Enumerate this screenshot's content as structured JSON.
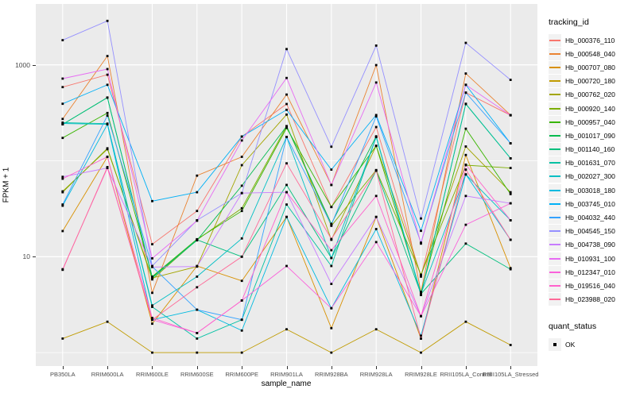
{
  "figure": {
    "y_axis_title": "FPKM + 1",
    "x_axis_title": "sample_name",
    "legend_tracking_title": "tracking_id",
    "legend_quant_title": "quant_status",
    "quant_item_label": "OK"
  },
  "colors": {
    "panel_background": "#EBEBEB",
    "gridline": "#FFFFFF",
    "tick_text": "#4D4D4D",
    "legend_key_background": "#F2F2F2",
    "point_color": "#000000"
  },
  "chart_data": {
    "type": "line",
    "title": "",
    "xlabel": "sample_name",
    "ylabel": "FPKM + 1",
    "y_scale": "log10",
    "ylim": [
      0.9,
      4100
    ],
    "y_tick_values": [
      1000,
      10
    ],
    "y_tick_labels": [
      "1000",
      "10"
    ],
    "y_major_gridlines": [
      1000,
      10
    ],
    "y_minor_gridlines": [
      100,
      1
    ],
    "grid": true,
    "legend_position": "right",
    "point_marker": {
      "shape": "square",
      "color": "#000000",
      "status_label": "OK"
    },
    "categories": [
      "PB350LA",
      "RRIM600LA",
      "RRIM600LE",
      "RRIM600SE",
      "RRIM600PE",
      "RRIM901LA",
      "RRIM928BA",
      "RRIM928LA",
      "RRIM928LE",
      "RRII105LA_Control",
      "RRII105LA_Stressed"
    ],
    "series": [
      {
        "name": "Hb_000376_110",
        "color": "#F8766D",
        "values": [
          586,
          790,
          13.5,
          30,
          179,
          391,
          33,
          225,
          6.2,
          513,
          298
        ]
      },
      {
        "name": "Hb_000548_040",
        "color": "#EA8331",
        "values": [
          273,
          1235,
          4.2,
          70,
          110,
          490,
          56,
          995,
          4.3,
          813,
          300
        ]
      },
      {
        "name": "Hb_000707_080",
        "color": "#D89000",
        "values": [
          18.5,
          110,
          2.0,
          8.0,
          5.6,
          26,
          1.8,
          26,
          1.4,
          115,
          7.6
        ]
      },
      {
        "name": "Hb_000720_180",
        "color": "#C09B00",
        "values": [
          1.4,
          2.1,
          1.0,
          1.0,
          1.0,
          1.75,
          1.0,
          1.75,
          1.0,
          2.1,
          1.2
        ]
      },
      {
        "name": "Hb_000762_020",
        "color": "#A3A500",
        "values": [
          48,
          132,
          6.0,
          7.9,
          90,
          303,
          15,
          143,
          6.4,
          141,
          47
        ]
      },
      {
        "name": "Hb_000920_140",
        "color": "#7CAE00",
        "values": [
          47,
          135,
          5.8,
          15,
          32,
          230,
          21,
          80,
          6.5,
          90,
          84
        ]
      },
      {
        "name": "Hb_000957_040",
        "color": "#39B600",
        "values": [
          173,
          315,
          6.2,
          15.2,
          30,
          220,
          33,
          143,
          4.2,
          216,
          45
        ]
      },
      {
        "name": "Hb_001017_090",
        "color": "#00BB4E",
        "values": [
          240,
          457,
          6.1,
          14.8,
          55,
          229,
          22,
          180,
          4.0,
          390,
          106
        ]
      },
      {
        "name": "Hb_001140_160",
        "color": "#00BF7D",
        "values": [
          240,
          455,
          6.0,
          15,
          10,
          56,
          9.7,
          79,
          4.1,
          13.7,
          7.4
        ]
      },
      {
        "name": "Hb_001631_070",
        "color": "#00C1A3",
        "values": [
          250,
          244,
          3.0,
          1.4,
          2.2,
          35,
          8.0,
          177,
          4.0,
          393,
          106
        ]
      },
      {
        "name": "Hb_002027_300",
        "color": "#00BFC4",
        "values": [
          245,
          240,
          3.1,
          6.2,
          15.5,
          177,
          9.7,
          177,
          4.1,
          72,
          24
        ]
      },
      {
        "name": "Hb_003018_180",
        "color": "#00BAE0",
        "values": [
          34,
          240,
          2.2,
          2.8,
          1.7,
          26,
          2.9,
          19.4,
          1.5,
          72,
          15
        ]
      },
      {
        "name": "Hb_003745_010",
        "color": "#00B0F6",
        "values": [
          393,
          620,
          38,
          47,
          179,
          340,
          81,
          300,
          18.6,
          620,
          152
        ]
      },
      {
        "name": "Hb_004032_440",
        "color": "#35A2FF",
        "values": [
          35,
          296,
          7.9,
          2.8,
          2.2,
          177,
          21.5,
          290,
          14,
          513,
          152
        ]
      },
      {
        "name": "Hb_004545_150",
        "color": "#9590FF",
        "values": [
          1810,
          2875,
          8.0,
          24,
          46,
          1460,
          140,
          1590,
          25,
          1695,
          697
        ]
      },
      {
        "name": "Hb_004738_090",
        "color": "#C77CFF",
        "values": [
          68,
          84,
          7.8,
          7.9,
          46,
          47,
          5.2,
          26,
          2.4,
          43,
          36
        ]
      },
      {
        "name": "Hb_010931_100",
        "color": "#E76BF3",
        "values": [
          719,
          904,
          9.6,
          23.7,
          163,
          730,
          56,
          655,
          13.7,
          620,
          298
        ]
      },
      {
        "name": "Hb_012347_010",
        "color": "#FA62DB",
        "values": [
          7.4,
          84,
          2.2,
          1.6,
          3.5,
          8.0,
          2.9,
          14.2,
          2.4,
          21.5,
          36
        ]
      },
      {
        "name": "Hb_019516_040",
        "color": "#FF61CC",
        "values": [
          65,
          110,
          2.3,
          1.6,
          3.5,
          47,
          11.7,
          43,
          2.4,
          91,
          24
        ]
      },
      {
        "name": "Hb_023988_020",
        "color": "#FF6A98",
        "values": [
          7.3,
          86,
          2.2,
          4.8,
          10,
          94,
          15.3,
          79,
          1.4,
          81,
          15
        ]
      }
    ]
  }
}
